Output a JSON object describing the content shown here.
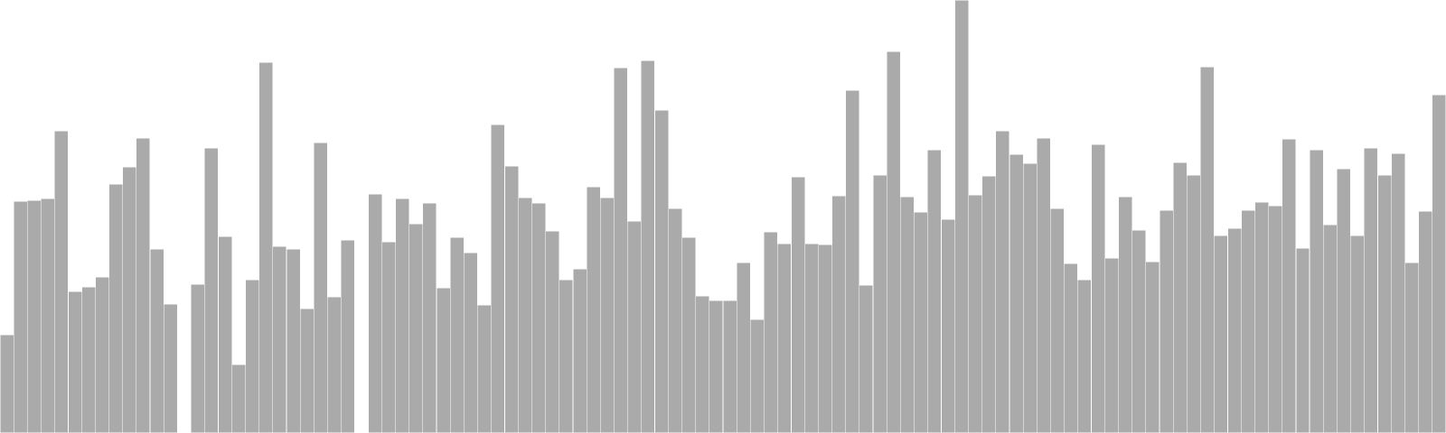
{
  "chart_data": {
    "type": "bar",
    "title": "",
    "xlabel": "",
    "ylabel": "",
    "grid": false,
    "legend": "none",
    "bar_color": "#aaaaaa",
    "ylim": [
      0,
      480
    ],
    "values": [
      109,
      257,
      258,
      260,
      335,
      157,
      162,
      173,
      276,
      295,
      327,
      204,
      143,
      0,
      165,
      316,
      218,
      76,
      170,
      411,
      207,
      204,
      138,
      322,
      151,
      214,
      0,
      265,
      212,
      260,
      232,
      255,
      161,
      217,
      200,
      142,
      342,
      296,
      261,
      255,
      224,
      170,
      182,
      273,
      261,
      405,
      235,
      413,
      358,
      249,
      217,
      152,
      147,
      147,
      189,
      126,
      223,
      210,
      284,
      210,
      209,
      263,
      380,
      164,
      286,
      423,
      262,
      245,
      314,
      237,
      480,
      264,
      285,
      335,
      309,
      299,
      327,
      249,
      188,
      170,
      320,
      194,
      262,
      225,
      190,
      247,
      300,
      286,
      406,
      219,
      227,
      247,
      256,
      252,
      326,
      205,
      314,
      231,
      293,
      219,
      316,
      286,
      310,
      189,
      246,
      375
    ]
  }
}
